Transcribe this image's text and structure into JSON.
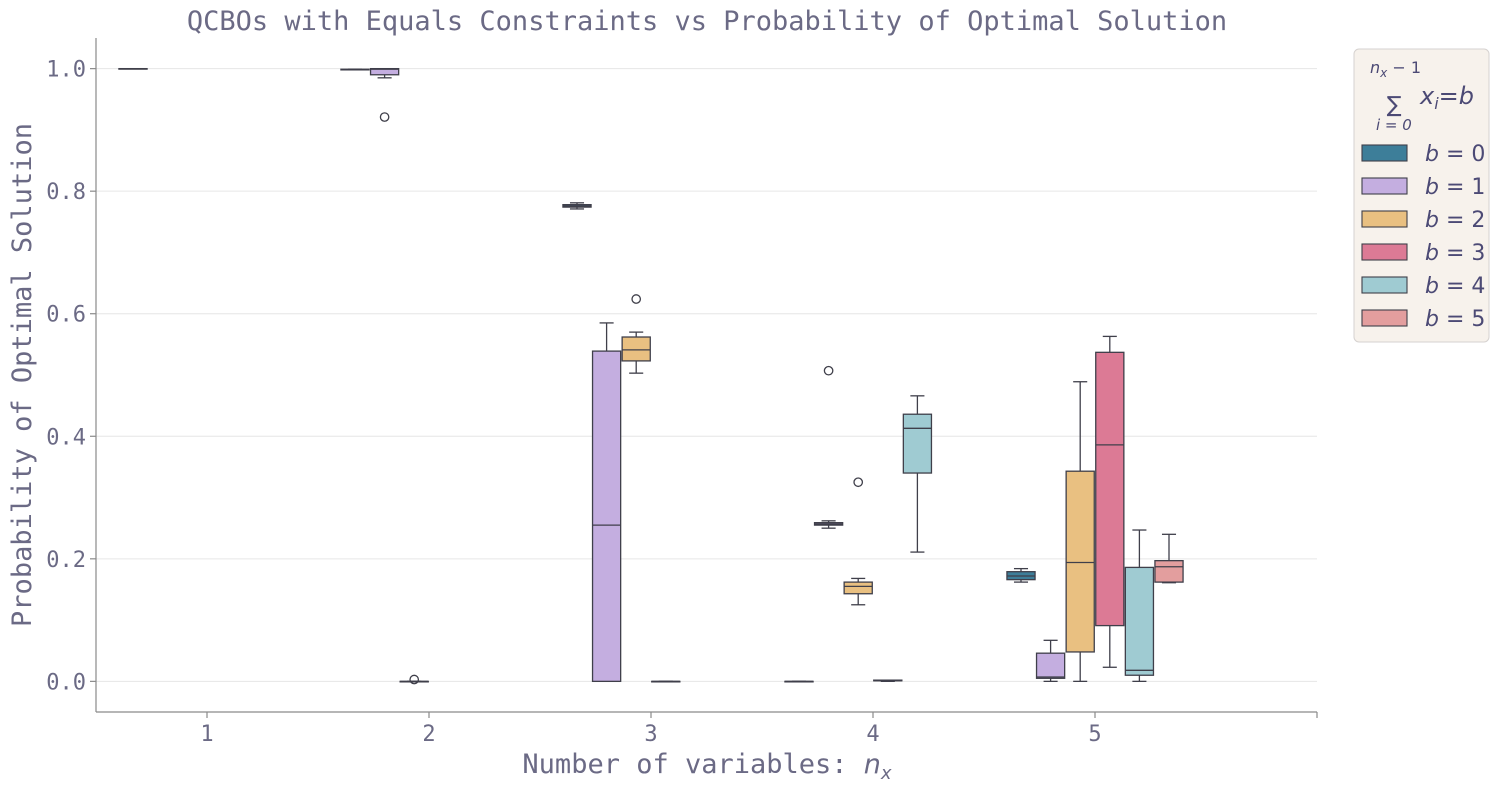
{
  "chart_data": {
    "type": "box",
    "title": "QCBOs with Equals Constraints vs Probability of Optimal Solution",
    "xlabel": "Number of variables: ",
    "xlabel_var": "n",
    "xlabel_sub": "x",
    "ylabel": "Probability of Optimal Solution",
    "ylim": [
      -0.05,
      1.05
    ],
    "yticks": [
      0.0,
      0.2,
      0.4,
      0.6,
      0.8,
      1.0
    ],
    "ytick_labels": [
      "0.0",
      "0.2",
      "0.4",
      "0.6",
      "0.8",
      "1.0"
    ],
    "categories": [
      "1",
      "2",
      "3",
      "4",
      "5"
    ],
    "grid": "horizontal",
    "legend": {
      "placement": "outside-right",
      "title_sum_top": "n",
      "title_sum_top_sub": "x",
      "title_sum_top_rest": " − 1",
      "title_sum_symbol": "∑",
      "title_sum_bottom": "i = 0",
      "title_eq_x": "x",
      "title_eq_sub": "i",
      "title_eq_rest": "=b",
      "entries": [
        {
          "label": "b = 0",
          "color": "#3d7e99"
        },
        {
          "label": "b = 1",
          "color": "#c4aee0"
        },
        {
          "label": "b = 2",
          "color": "#e9c081"
        },
        {
          "label": "b = 3",
          "color": "#dc7a95"
        },
        {
          "label": "b = 4",
          "color": "#9fcbd2"
        },
        {
          "label": "b = 5",
          "color": "#e39e9e"
        }
      ]
    },
    "series": [
      {
        "name": "b = 0",
        "color": "#3d7e99",
        "boxes": [
          {
            "category": "1",
            "whislo": 1.0,
            "q1": 1.0,
            "med": 1.0,
            "q3": 1.0,
            "whishi": 1.0,
            "fliers": []
          },
          {
            "category": "2",
            "whislo": 0.998,
            "q1": 0.998,
            "med": 0.998,
            "q3": 0.999,
            "whishi": 0.999,
            "fliers": []
          },
          {
            "category": "3",
            "whislo": 0.771,
            "q1": 0.774,
            "med": 0.776,
            "q3": 0.778,
            "whishi": 0.781,
            "fliers": []
          },
          {
            "category": "4",
            "whislo": 0.0,
            "q1": 0.0,
            "med": 0.0,
            "q3": 0.0,
            "whishi": 0.0,
            "fliers": []
          },
          {
            "category": "5",
            "whislo": 0.162,
            "q1": 0.166,
            "med": 0.172,
            "q3": 0.179,
            "whishi": 0.184,
            "fliers": []
          }
        ]
      },
      {
        "name": "b = 1",
        "color": "#c4aee0",
        "boxes": [
          {
            "category": "2",
            "whislo": 0.985,
            "q1": 0.99,
            "med": 0.999,
            "q3": 1.0,
            "whishi": 1.0,
            "fliers": [
              0.921
            ]
          },
          {
            "category": "3",
            "whislo": 0.0,
            "q1": 0.0,
            "med": 0.255,
            "q3": 0.539,
            "whishi": 0.585,
            "fliers": []
          },
          {
            "category": "4",
            "whislo": 0.25,
            "q1": 0.255,
            "med": 0.257,
            "q3": 0.259,
            "whishi": 0.262,
            "fliers": [
              0.507
            ]
          },
          {
            "category": "5",
            "whislo": 0.0,
            "q1": 0.005,
            "med": 0.007,
            "q3": 0.046,
            "whishi": 0.067,
            "fliers": []
          }
        ]
      },
      {
        "name": "b = 2",
        "color": "#e9c081",
        "boxes": [
          {
            "category": "2",
            "whislo": 0.0,
            "q1": 0.0,
            "med": 0.0,
            "q3": 0.0,
            "whishi": 0.0,
            "fliers": [
              0.003
            ]
          },
          {
            "category": "3",
            "whislo": 0.503,
            "q1": 0.523,
            "med": 0.541,
            "q3": 0.562,
            "whishi": 0.57,
            "fliers": [
              0.624
            ]
          },
          {
            "category": "4",
            "whislo": 0.125,
            "q1": 0.143,
            "med": 0.155,
            "q3": 0.162,
            "whishi": 0.168,
            "fliers": [
              0.325
            ]
          },
          {
            "category": "5",
            "whislo": 0.0,
            "q1": 0.048,
            "med": 0.194,
            "q3": 0.343,
            "whishi": 0.489,
            "fliers": []
          }
        ]
      },
      {
        "name": "b = 3",
        "color": "#dc7a95",
        "boxes": [
          {
            "category": "3",
            "whislo": 0.0,
            "q1": 0.0,
            "med": 0.0,
            "q3": 0.0,
            "whishi": 0.0,
            "fliers": []
          },
          {
            "category": "4",
            "whislo": 0.0,
            "q1": 0.001,
            "med": 0.001,
            "q3": 0.002,
            "whishi": 0.002,
            "fliers": []
          },
          {
            "category": "5",
            "whislo": 0.023,
            "q1": 0.091,
            "med": 0.386,
            "q3": 0.537,
            "whishi": 0.563,
            "fliers": []
          }
        ]
      },
      {
        "name": "b = 4",
        "color": "#9fcbd2",
        "boxes": [
          {
            "category": "4",
            "whislo": 0.211,
            "q1": 0.34,
            "med": 0.413,
            "q3": 0.436,
            "whishi": 0.466,
            "fliers": []
          },
          {
            "category": "5",
            "whislo": 0.0,
            "q1": 0.01,
            "med": 0.018,
            "q3": 0.186,
            "whishi": 0.247,
            "fliers": []
          }
        ]
      },
      {
        "name": "b = 5",
        "color": "#e39e9e",
        "boxes": [
          {
            "category": "5",
            "whislo": 0.161,
            "q1": 0.162,
            "med": 0.187,
            "q3": 0.197,
            "whishi": 0.24,
            "fliers": []
          }
        ]
      }
    ]
  }
}
